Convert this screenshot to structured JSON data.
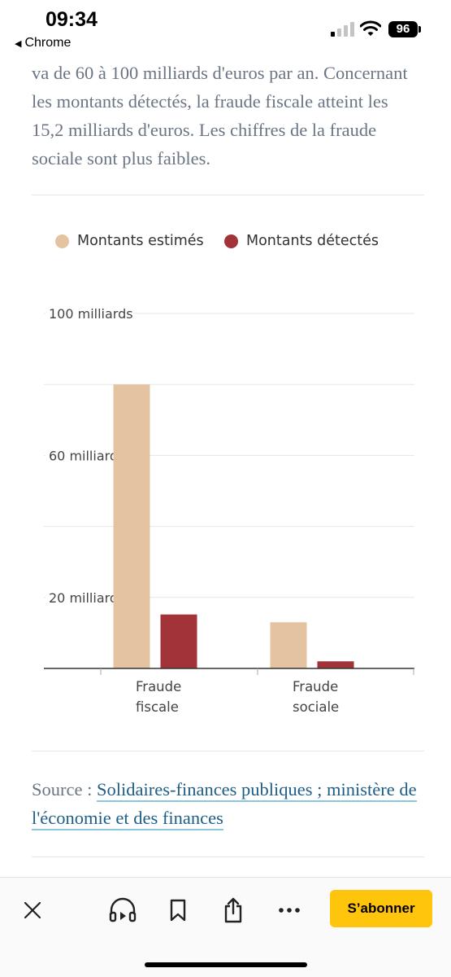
{
  "status_bar": {
    "time": "09:34",
    "back_label": "Chrome",
    "battery": "96",
    "icons": [
      "signal-icon",
      "wifi-icon",
      "battery-icon"
    ]
  },
  "article": {
    "paragraph": "va de 60 à 100 milliards d'euros par an. Concernant les montants détectés, la fraude fiscale atteint les 15,2 milliards d'euros. Les chiffres de la fraude sociale sont plus faibles."
  },
  "chart_data": {
    "type": "bar",
    "categories": [
      "Fraude fiscale",
      "Fraude sociale"
    ],
    "category_lines": [
      [
        "Fraude",
        "fiscale"
      ],
      [
        "Fraude",
        "sociale"
      ]
    ],
    "series": [
      {
        "name": "Montants estimés",
        "values": [
          80,
          13
        ],
        "color": "#e4c4a0"
      },
      {
        "name": "Montants détectés",
        "values": [
          15.2,
          2
        ],
        "color": "#a23338"
      }
    ],
    "ylim": [
      0,
      100
    ],
    "gridlines": [
      0,
      20,
      40,
      60,
      80,
      100
    ],
    "yticks": [
      {
        "value": 100,
        "label": "100 milliards"
      },
      {
        "value": 60,
        "label": "60 milliards"
      },
      {
        "value": 20,
        "label": "20 milliards"
      }
    ],
    "legend_position": "top",
    "grid": true
  },
  "source": {
    "prefix": "Source : ",
    "link_text": "Solidaires-finances publiques ; ministère de l'économie et des finances"
  },
  "toolbar": {
    "subscribe_label": "S’abonner",
    "icons": [
      "close-icon",
      "audio-icon",
      "bookmark-icon",
      "share-icon",
      "more-icon"
    ]
  },
  "colors": {
    "estimated": "#e4c4a0",
    "detected": "#a23338",
    "subscribe": "#ffc40c",
    "link": "#1d5d86"
  }
}
